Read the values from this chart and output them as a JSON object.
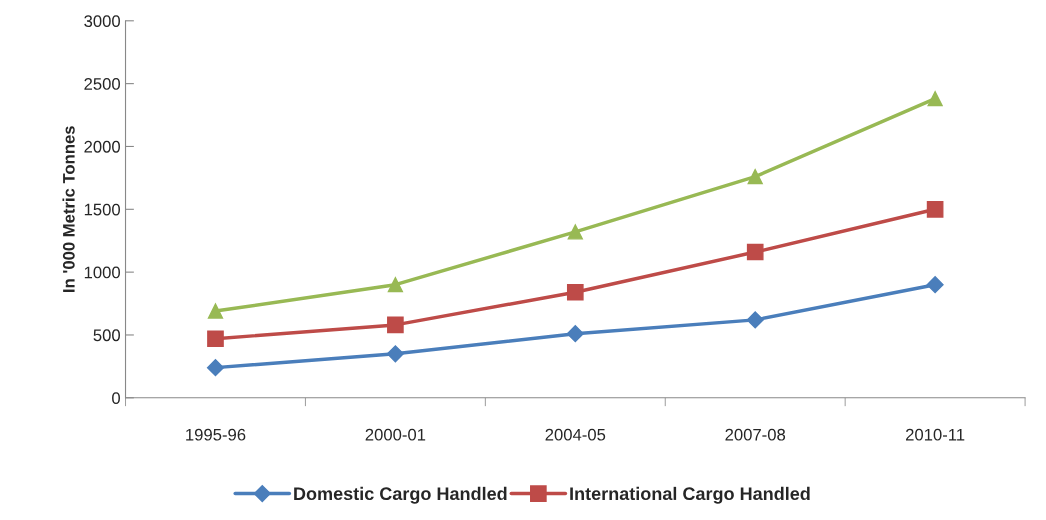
{
  "chart_data": {
    "type": "line",
    "ylabel": "In '000 Metric Tonnes",
    "categories": [
      "1995-96",
      "2000-01",
      "2004-05",
      "2007-08",
      "2010-11"
    ],
    "ylim": [
      0,
      3000
    ],
    "yticks": [
      0,
      500,
      1000,
      1500,
      2000,
      2500,
      3000
    ],
    "grid": false,
    "legend": "bottom",
    "series": [
      {
        "name": "Domestic Cargo Handled",
        "color": "#4a7ebb",
        "marker": "diamond",
        "values": [
          240,
          350,
          510,
          620,
          900
        ]
      },
      {
        "name": "International Cargo Handled",
        "color": "#be4b48",
        "marker": "square",
        "values": [
          470,
          580,
          840,
          1160,
          1500
        ]
      },
      {
        "color": "#98b954",
        "marker": "triangle",
        "values": [
          690,
          900,
          1320,
          1760,
          2380
        ]
      }
    ]
  }
}
